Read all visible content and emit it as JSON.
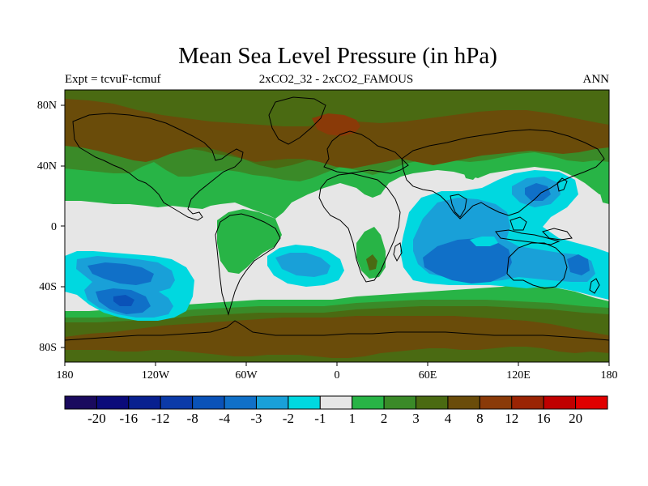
{
  "title": "Mean Sea Level Pressure (in hPa)",
  "subtitle_left": "Expt = tcvuF-tcmuf",
  "subtitle_center": "2xCO2_32 - 2xCO2_FAMOUS",
  "subtitle_right": "ANN",
  "lat_ticks": [
    "80N",
    "40N",
    "0",
    "40S",
    "80S"
  ],
  "lon_ticks": [
    "180",
    "120W",
    "60W",
    "0",
    "60E",
    "120E",
    "180"
  ],
  "colorbar": {
    "colors": [
      "#1a0a5e",
      "#0b0b7a",
      "#08208f",
      "#0b3aa8",
      "#0a52b8",
      "#1070c8",
      "#19a0d8",
      "#00d8e0",
      "#e6e6e6",
      "#28b446",
      "#3a8a28",
      "#4a6a12",
      "#6a4c0a",
      "#8a3a08",
      "#9a2404",
      "#c00000",
      "#e00000"
    ],
    "labels": [
      "-20",
      "-16",
      "-12",
      "-8",
      "-4",
      "-3",
      "-2",
      "-1",
      "1",
      "2",
      "3",
      "4",
      "8",
      "12",
      "16",
      "20"
    ]
  },
  "field_colors": {
    "background": "#e6e6e6",
    "pos1": "#28b446",
    "pos2": "#3a8a28",
    "pos3": "#4a6a12",
    "pos4": "#6a4c0a",
    "pos5": "#8a3a08",
    "neg1": "#00d8e0",
    "neg2": "#19a0d8",
    "neg3": "#1070c8"
  }
}
